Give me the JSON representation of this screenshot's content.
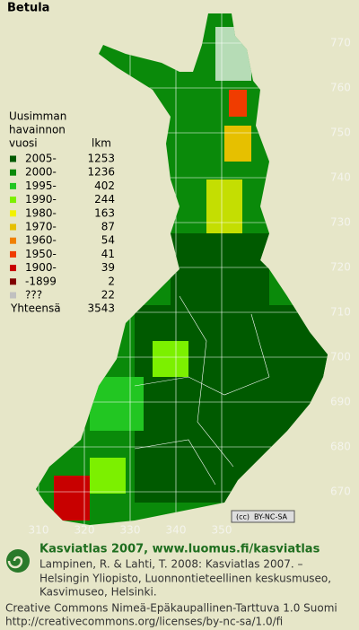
{
  "title": "Betula",
  "legend": {
    "heading": [
      "Uusimman",
      "havainnon",
      "vuosi"
    ],
    "count_heading": "lkm",
    "items": [
      {
        "label": "2005-",
        "count": 1253,
        "color": "#005a00"
      },
      {
        "label": "2000-",
        "count": 1236,
        "color": "#0a8a0a"
      },
      {
        "label": "1995-",
        "count": 402,
        "color": "#22c622"
      },
      {
        "label": "1990-",
        "count": 244,
        "color": "#7cf000"
      },
      {
        "label": "1980-",
        "count": 163,
        "color": "#f2f200"
      },
      {
        "label": "1970-",
        "count": 87,
        "color": "#e6c000"
      },
      {
        "label": "1960-",
        "count": 54,
        "color": "#f08000"
      },
      {
        "label": "1950-",
        "count": 41,
        "color": "#f03c00"
      },
      {
        "label": "1900-",
        "count": 39,
        "color": "#c80000"
      },
      {
        "label": "-1899",
        "count": 2,
        "color": "#800000"
      },
      {
        "label": "???",
        "count": 22,
        "color": "#c0c0c0"
      }
    ],
    "total_label": "Yhteensä",
    "total": 3543
  },
  "map": {
    "yticks": [
      670,
      680,
      690,
      700,
      710,
      720,
      730,
      740,
      750,
      760,
      770
    ],
    "xticks": [
      310,
      320,
      330,
      340,
      350
    ],
    "license_badge": "BY-NC-SA"
  },
  "footer": {
    "heading": "Kasviatlas 2007, www.luomus.fi/kasviatlas",
    "citation": [
      "Lampinen, R. & Lahti, T. 2008: Kasviatlas 2007. –",
      "Helsingin Yliopisto, Luonnontieteellinen keskusmuseo,",
      "Kasvimuseo, Helsinki."
    ],
    "license": [
      "Creative Commons Nimeä-Epäkaupallinen-Tarttuva 1.0 Suomi",
      "http://creativecommons.org/licenses/by-nc-sa/1.0/fi"
    ]
  }
}
